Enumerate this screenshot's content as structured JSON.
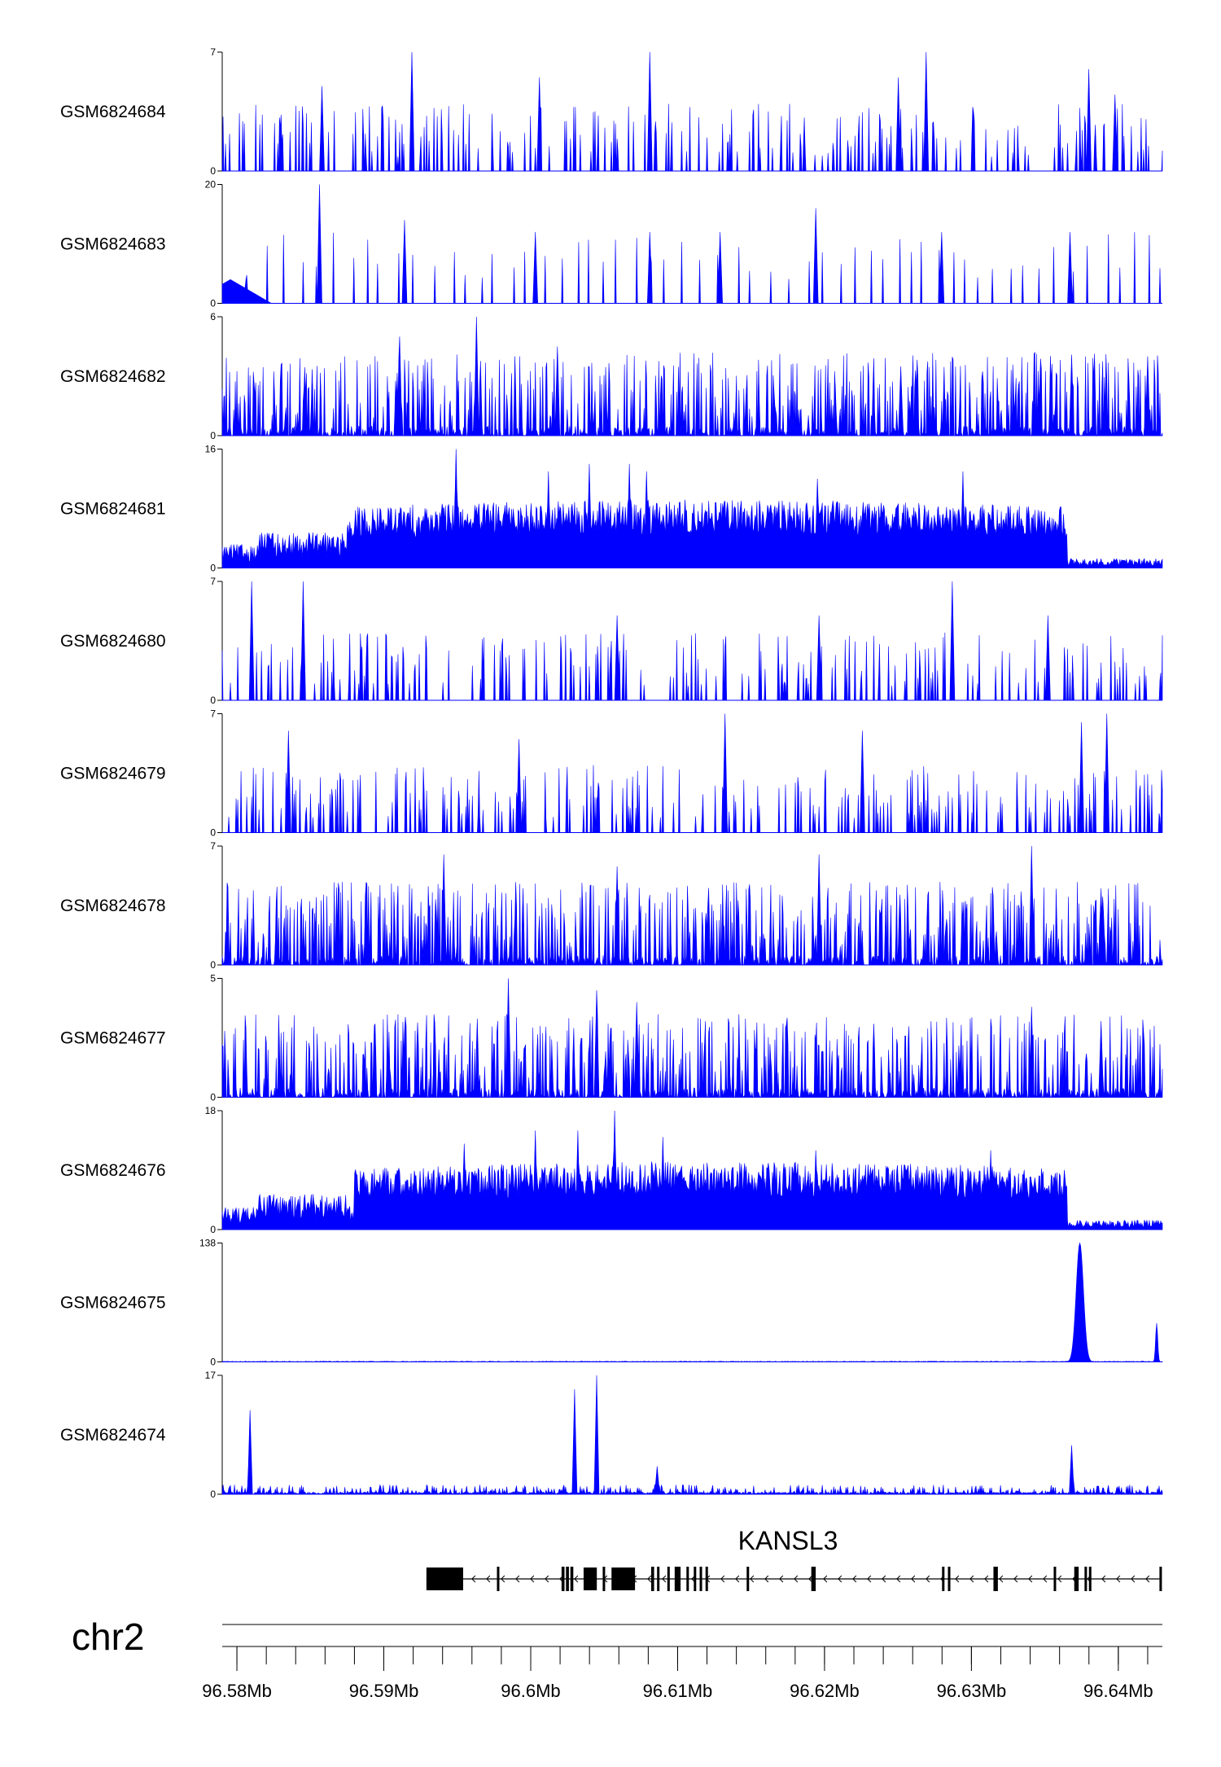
{
  "chart_data": {
    "type": "area",
    "title": "",
    "genome_region": {
      "chromosome": "chr2",
      "x_range_mb": [
        96.579,
        96.643
      ],
      "x_ticks": [
        {
          "value": 96.58,
          "label": "96.58Mb"
        },
        {
          "value": 96.59,
          "label": "96.59Mb"
        },
        {
          "value": 96.6,
          "label": "96.6Mb"
        },
        {
          "value": 96.61,
          "label": "96.61Mb"
        },
        {
          "value": 96.62,
          "label": "96.62Mb"
        },
        {
          "value": 96.63,
          "label": "96.63Mb"
        },
        {
          "value": 96.64,
          "label": "96.64Mb"
        }
      ],
      "minor_tick_step_mb": 0.002
    },
    "tracks": [
      {
        "name": "GSM6824684",
        "ymax": 7,
        "ymin": 0,
        "ymax_label": "7",
        "ymin_label": "0",
        "color": "#0000ff",
        "profile": "sparse-spiky",
        "peaks": [
          [
            96.5858,
            5
          ],
          [
            96.5919,
            7
          ],
          [
            96.6006,
            5.5
          ],
          [
            96.6081,
            7
          ],
          [
            96.625,
            5.5
          ],
          [
            96.6269,
            7
          ],
          [
            96.638,
            6
          ],
          [
            96.6398,
            4.5
          ]
        ]
      },
      {
        "name": "GSM6824683",
        "ymax": 20,
        "ymin": 0,
        "ymax_label": "20",
        "ymin_label": "0",
        "color": "#0000ff",
        "profile": "very-sparse-spiky",
        "peaks": [
          [
            96.5806,
            4
          ],
          [
            96.5856,
            20
          ],
          [
            96.5914,
            14
          ],
          [
            96.6003,
            12
          ],
          [
            96.6081,
            12
          ],
          [
            96.6129,
            12
          ],
          [
            96.6194,
            16
          ],
          [
            96.628,
            12
          ],
          [
            96.6367,
            12
          ]
        ]
      },
      {
        "name": "GSM6824682",
        "ymax": 6,
        "ymin": 0,
        "ymax_label": "6",
        "ymin_label": "0",
        "color": "#0000ff",
        "profile": "dense-spiky",
        "peaks": [
          [
            96.5911,
            5
          ],
          [
            96.5963,
            6
          ],
          [
            96.6018,
            4.5
          ],
          [
            96.6252,
            3.5
          ],
          [
            96.6368,
            4
          ],
          [
            96.642,
            4
          ]
        ]
      },
      {
        "name": "GSM6824681",
        "ymax": 16,
        "ymin": 0,
        "ymax_label": "16",
        "ymin_label": "0",
        "color": "#0000ff",
        "profile": "broad-domain",
        "domain_mb": [
          96.5875,
          96.6365
        ],
        "peaks": [
          [
            96.5949,
            16
          ],
          [
            96.6012,
            13
          ],
          [
            96.604,
            14
          ],
          [
            96.6067,
            14
          ],
          [
            96.6079,
            13
          ],
          [
            96.6195,
            12
          ],
          [
            96.6294,
            13
          ]
        ]
      },
      {
        "name": "GSM6824680",
        "ymax": 7,
        "ymin": 0,
        "ymax_label": "7",
        "ymin_label": "0",
        "color": "#0000ff",
        "profile": "sparse-spiky",
        "peaks": [
          [
            96.581,
            7
          ],
          [
            96.5845,
            7
          ],
          [
            96.6059,
            5
          ],
          [
            96.6196,
            5
          ],
          [
            96.6287,
            7
          ],
          [
            96.6352,
            5
          ]
        ]
      },
      {
        "name": "GSM6824679",
        "ymax": 7,
        "ymin": 0,
        "ymax_label": "7",
        "ymin_label": "0",
        "color": "#0000ff",
        "profile": "sparse-spiky",
        "peaks": [
          [
            96.5835,
            6
          ],
          [
            96.5992,
            5.5
          ],
          [
            96.6132,
            7
          ],
          [
            96.6226,
            6
          ],
          [
            96.6375,
            6.5
          ],
          [
            96.6392,
            7
          ]
        ]
      },
      {
        "name": "GSM6824678",
        "ymax": 7,
        "ymin": 0,
        "ymax_label": "7",
        "ymin_label": "0",
        "color": "#0000ff",
        "profile": "dense-spiky",
        "peaks": [
          [
            96.5941,
            6.5
          ],
          [
            96.6059,
            5.8
          ],
          [
            96.6196,
            6.5
          ],
          [
            96.6341,
            7
          ],
          [
            96.6388,
            4.5
          ]
        ]
      },
      {
        "name": "GSM6824677",
        "ymax": 5,
        "ymin": 0,
        "ymax_label": "5",
        "ymin_label": "0",
        "color": "#0000ff",
        "profile": "dense-spiky",
        "peaks": [
          [
            96.5985,
            5
          ],
          [
            96.6045,
            4.5
          ],
          [
            96.6072,
            4
          ],
          [
            96.6341,
            3.8
          ],
          [
            96.6388,
            3.2
          ]
        ]
      },
      {
        "name": "GSM6824676",
        "ymax": 18,
        "ymin": 0,
        "ymax_label": "18",
        "ymin_label": "0",
        "color": "#0000ff",
        "profile": "broad-domain",
        "domain_mb": [
          96.588,
          96.6365
        ],
        "peaks": [
          [
            96.5955,
            13
          ],
          [
            96.6003,
            15
          ],
          [
            96.6032,
            15
          ],
          [
            96.6057,
            18
          ],
          [
            96.609,
            14
          ],
          [
            96.6194,
            12
          ],
          [
            96.6313,
            12
          ]
        ]
      },
      {
        "name": "GSM6824675",
        "ymax": 138,
        "ymin": 0,
        "ymax_label": "138",
        "ymin_label": "0",
        "color": "#0000ff",
        "profile": "two-peaks",
        "peaks": [
          [
            96.6374,
            138
          ],
          [
            96.6426,
            45
          ]
        ]
      },
      {
        "name": "GSM6824674",
        "ymax": 17,
        "ymin": 0,
        "ymax_label": "17",
        "ymin_label": "0",
        "color": "#0000ff",
        "profile": "low-with-peaks",
        "peaks": [
          [
            96.5809,
            12
          ],
          [
            96.603,
            15
          ],
          [
            96.6045,
            17
          ],
          [
            96.6086,
            4
          ],
          [
            96.6368,
            7
          ]
        ]
      }
    ],
    "gene": {
      "name": "KANSL3",
      "strand": "-",
      "start_mb": 96.5929,
      "end_mb": 96.6428,
      "exons_mb": [
        [
          96.5929,
          96.5954
        ],
        [
          96.5977,
          96.5978
        ],
        [
          96.6021,
          96.6023
        ],
        [
          96.6024,
          96.6026
        ],
        [
          96.6027,
          96.6029
        ],
        [
          96.6036,
          96.6045
        ],
        [
          96.6049,
          96.605
        ],
        [
          96.6055,
          96.6071
        ],
        [
          96.6082,
          96.6084
        ],
        [
          96.6086,
          96.6087
        ],
        [
          96.6093,
          96.6094
        ],
        [
          96.6098,
          96.6102
        ],
        [
          96.6106,
          96.6107
        ],
        [
          96.6111,
          96.6112
        ],
        [
          96.6115,
          96.6116
        ],
        [
          96.6119,
          96.612
        ],
        [
          96.6147,
          96.6148
        ],
        [
          96.6191,
          96.6194
        ],
        [
          96.628,
          96.6281
        ],
        [
          96.6284,
          96.6285
        ],
        [
          96.6315,
          96.6318
        ],
        [
          96.6356,
          96.6357
        ],
        [
          96.637,
          96.6373
        ],
        [
          96.6377,
          96.6378
        ],
        [
          96.638,
          96.6381
        ],
        [
          96.6428,
          96.6429
        ]
      ]
    }
  }
}
